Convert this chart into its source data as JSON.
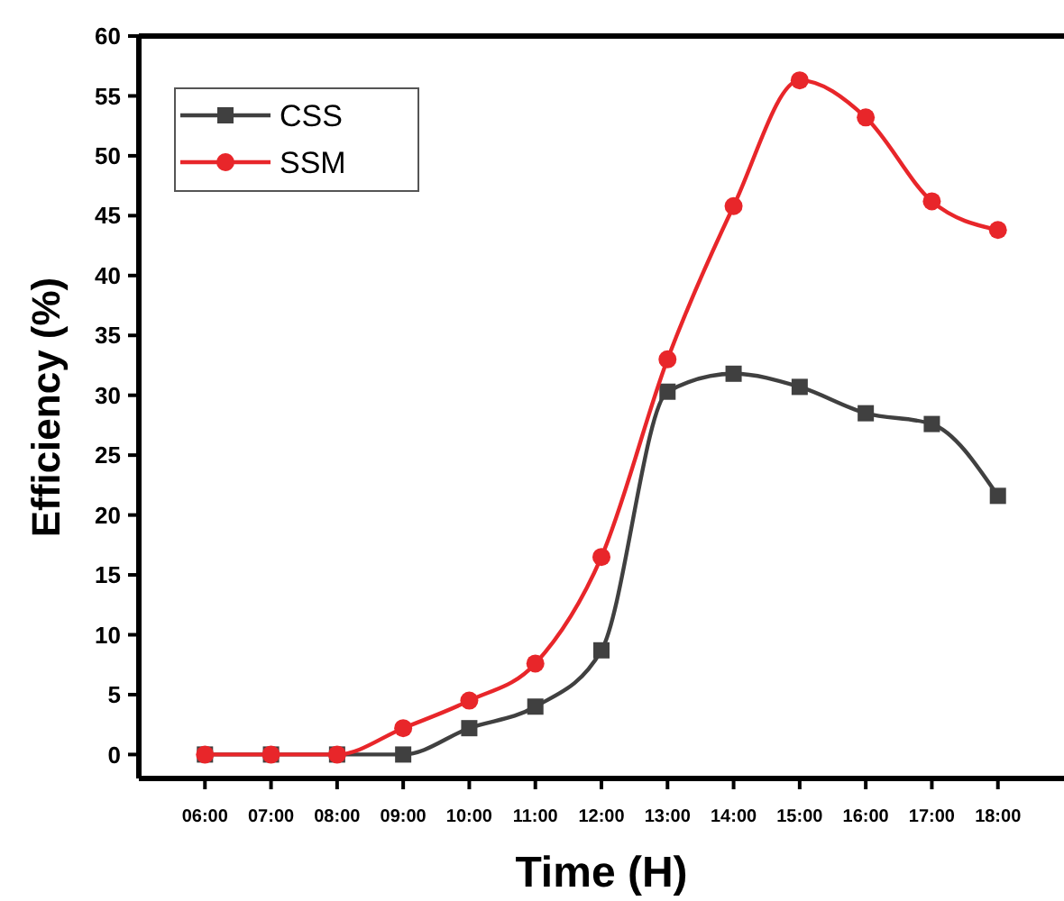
{
  "chart_data": {
    "type": "line",
    "xlabel": "Time (H)",
    "ylabel": "Efficiency (%)",
    "x": [
      6,
      7,
      8,
      9,
      10,
      11,
      12,
      13,
      14,
      15,
      16,
      17,
      18
    ],
    "xlim": [
      5,
      19
    ],
    "xticks": [
      {
        "value": 6,
        "label": "06:00"
      },
      {
        "value": 7,
        "label": "07:00"
      },
      {
        "value": 8,
        "label": "08:00"
      },
      {
        "value": 9,
        "label": "09:00"
      },
      {
        "value": 10,
        "label": "10:00"
      },
      {
        "value": 11,
        "label": "11:00"
      },
      {
        "value": 12,
        "label": "12:00"
      },
      {
        "value": 13,
        "label": "13:00"
      },
      {
        "value": 14,
        "label": "14:00"
      },
      {
        "value": 15,
        "label": "15:00"
      },
      {
        "value": 16,
        "label": "16:00"
      },
      {
        "value": 17,
        "label": "17:00"
      },
      {
        "value": 18,
        "label": "18:00"
      }
    ],
    "ylim": [
      -2,
      60
    ],
    "yticks": [
      0,
      5,
      10,
      15,
      20,
      25,
      30,
      35,
      40,
      45,
      50,
      55,
      60
    ],
    "series": [
      {
        "name": "CSS",
        "color": "#404040",
        "marker": "square",
        "values": [
          0,
          0,
          0,
          0,
          2.2,
          4,
          8.7,
          30.3,
          31.8,
          30.7,
          28.5,
          27.6,
          21.6
        ]
      },
      {
        "name": "SSM",
        "color": "#e8262a",
        "marker": "circle",
        "values": [
          0,
          0,
          0,
          2.2,
          4.5,
          7.6,
          16.5,
          33,
          45.8,
          56.3,
          53.2,
          46.2,
          43.8
        ]
      }
    ],
    "legend": "top left",
    "grid": false,
    "line_style": "solid"
  }
}
